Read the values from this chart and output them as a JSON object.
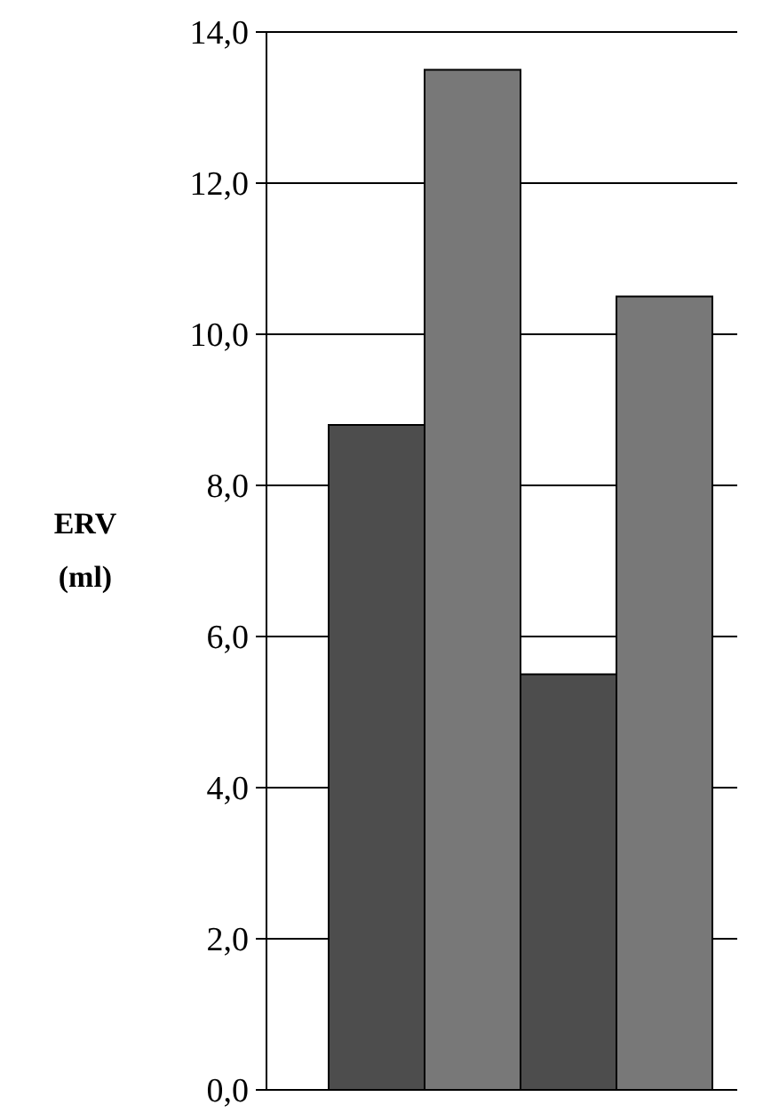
{
  "chart_data": {
    "type": "bar",
    "ylabel": "ERV (ml)",
    "categories": [
      null,
      null,
      null,
      null
    ],
    "values": [
      8.8,
      13.5,
      5.5,
      10.5
    ],
    "colors": [
      "#4d4d4d",
      "#787878",
      "#4d4d4d",
      "#787878"
    ],
    "ylim": [
      0,
      14
    ],
    "yticks": [
      {
        "value": 0,
        "label": "0,0"
      },
      {
        "value": 2,
        "label": "2,0"
      },
      {
        "value": 4,
        "label": "4,0"
      },
      {
        "value": 6,
        "label": "6,0"
      },
      {
        "value": 8,
        "label": "8,0"
      },
      {
        "value": 10,
        "label": "10,0"
      },
      {
        "value": 12,
        "label": "12,0"
      },
      {
        "value": 14,
        "label": "14,0"
      }
    ],
    "grid": "y"
  }
}
